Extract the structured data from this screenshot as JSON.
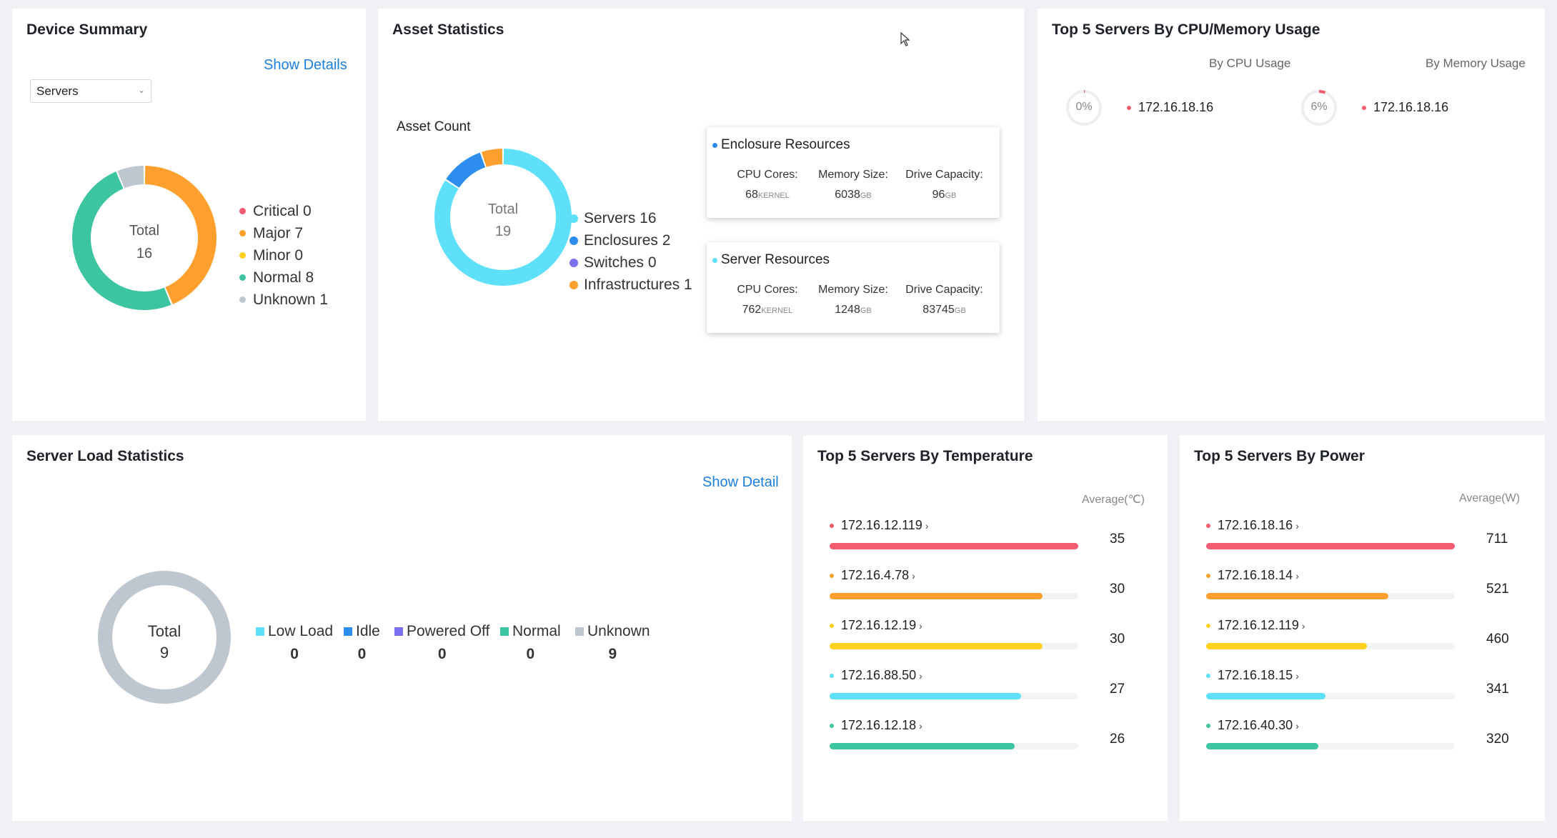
{
  "device_summary": {
    "title": "Device Summary",
    "show_details": "Show Details",
    "select_value": "Servers",
    "total_label": "Total",
    "total_value": "16",
    "legend": [
      {
        "label": "Critical 0",
        "color": "#f25c6e",
        "value": 0
      },
      {
        "label": "Major 7",
        "color": "#ff9f2e",
        "value": 7
      },
      {
        "label": "Minor 0",
        "color": "#ffd21f",
        "value": 0
      },
      {
        "label": "Normal 8",
        "color": "#3dc4a0",
        "value": 8
      },
      {
        "label": "Unknown 1",
        "color": "#bec6cf",
        "value": 1
      }
    ]
  },
  "asset_statistics": {
    "title": "Asset Statistics",
    "asset_count_label": "Asset Count",
    "total_label": "Total",
    "total_value": "19",
    "legend": [
      {
        "label": "Servers 16",
        "color": "#5ee0fa",
        "value": 16
      },
      {
        "label": "Enclosures 2",
        "color": "#2e8ef0",
        "value": 2
      },
      {
        "label": "Switches 0",
        "color": "#7b6ff2",
        "value": 0
      },
      {
        "label": "Infrastructures 1",
        "color": "#ff9f2e",
        "value": 1
      }
    ],
    "enclosure": {
      "title": "Enclosure Resources",
      "dot_color": "#2e8ef0",
      "cpu_label": "CPU Cores:",
      "cpu_value": "68",
      "cpu_unit": "KERNEL",
      "mem_label": "Memory Size:",
      "mem_value": "6038",
      "mem_unit": "GB",
      "drive_label": "Drive Capacity:",
      "drive_value": "96",
      "drive_unit": "GB"
    },
    "server": {
      "title": "Server Resources",
      "dot_color": "#5ee0fa",
      "cpu_label": "CPU Cores:",
      "cpu_value": "762",
      "cpu_unit": "KERNEL",
      "mem_label": "Memory Size:",
      "mem_value": "1248",
      "mem_unit": "GB",
      "drive_label": "Drive Capacity:",
      "drive_value": "83745",
      "drive_unit": "GB"
    }
  },
  "top_cpu_memory": {
    "title": "Top 5 Servers By CPU/Memory Usage",
    "by_cpu_label": "By CPU Usage",
    "by_memory_label": "By Memory Usage",
    "cpu_item": {
      "percent_label": "0%",
      "percent": 0,
      "ip": "172.16.18.16"
    },
    "memory_item": {
      "percent_label": "6%",
      "percent": 6,
      "ip": "172.16.18.16"
    }
  },
  "server_load": {
    "title": "Server Load Statistics",
    "show_detail": "Show Detail",
    "total_label": "Total",
    "total_value": "9",
    "legend": [
      {
        "label": "Low Load",
        "count": "0",
        "color": "#5ee0fa"
      },
      {
        "label": "Idle",
        "count": "0",
        "color": "#2e8ef0"
      },
      {
        "label": "Powered Off",
        "count": "0",
        "color": "#7b6ff2"
      },
      {
        "label": "Normal",
        "count": "0",
        "color": "#3dc4a0"
      },
      {
        "label": "Unknown",
        "count": "9",
        "color": "#bec6cf"
      }
    ]
  },
  "top_temperature": {
    "title": "Top 5 Servers By Temperature",
    "avg_label": "Average(℃)",
    "items": [
      {
        "ip": "172.16.12.119",
        "value": "35",
        "fraction": 1.0,
        "color": "#f25c6e"
      },
      {
        "ip": "172.16.4.78",
        "value": "30",
        "fraction": 0.857,
        "color": "#ff9f2e"
      },
      {
        "ip": "172.16.12.19",
        "value": "30",
        "fraction": 0.857,
        "color": "#ffd21f"
      },
      {
        "ip": "172.16.88.50",
        "value": "27",
        "fraction": 0.771,
        "color": "#5ee0fa"
      },
      {
        "ip": "172.16.12.18",
        "value": "26",
        "fraction": 0.743,
        "color": "#3dc4a0"
      }
    ]
  },
  "top_power": {
    "title": "Top 5 Servers By Power",
    "avg_label": "Average(W)",
    "items": [
      {
        "ip": "172.16.18.16",
        "value": "711",
        "fraction": 1.0,
        "color": "#f25c6e"
      },
      {
        "ip": "172.16.18.14",
        "value": "521",
        "fraction": 0.733,
        "color": "#ff9f2e"
      },
      {
        "ip": "172.16.12.119",
        "value": "460",
        "fraction": 0.647,
        "color": "#ffd21f"
      },
      {
        "ip": "172.16.18.15",
        "value": "341",
        "fraction": 0.48,
        "color": "#5ee0fa"
      },
      {
        "ip": "172.16.40.30",
        "value": "320",
        "fraction": 0.45,
        "color": "#3dc4a0"
      }
    ]
  }
}
